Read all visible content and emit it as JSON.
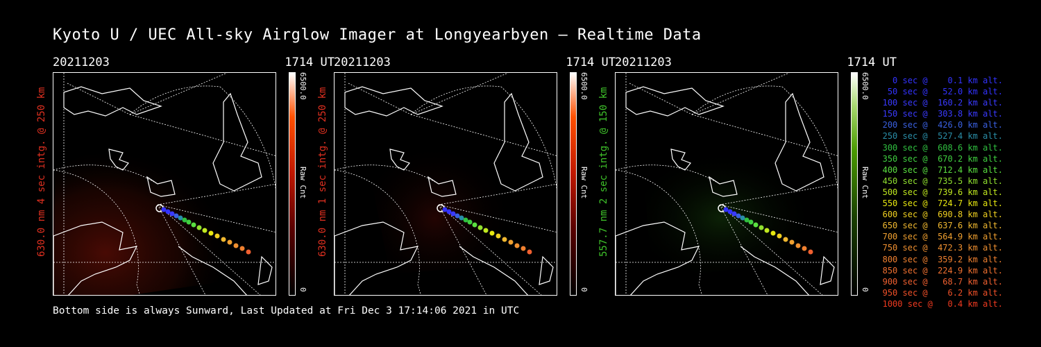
{
  "title": "Kyoto U / UEC All-sky Airglow Imager at Longyearbyen — Realtime Data",
  "footer": "Bottom side is always Sunward, Last Updated at Fri Dec  3 17:14:06 2021 in UTC",
  "panels": [
    {
      "date": "20211203",
      "time": "1714 UT",
      "ylabel": "630.0 nm 4 sec intg. @ 250 km",
      "label_color": "#e03020",
      "colorbar": {
        "max": "6500.0",
        "min": "0",
        "name": "Raw Cnt",
        "color": "#ff4a00"
      }
    },
    {
      "date": "20211203",
      "time": "1714 UT",
      "ylabel": "630.0 nm 1 sec intg. @ 250 km",
      "label_color": "#e03020",
      "colorbar": {
        "max": "6500.0",
        "min": "0",
        "name": "Raw Cnt",
        "color": "#ff4a00"
      }
    },
    {
      "date": "20211203",
      "time": "1714 UT",
      "ylabel": "557.7 nm 2 sec intg. @ 150 km",
      "label_color": "#3fc42a",
      "colorbar": {
        "max": "6500.0",
        "min": "0",
        "name": "Raw Cnt",
        "color": "#3a8a00"
      }
    }
  ],
  "legend": [
    {
      "text": "  0 sec @    0.1 km alt.",
      "color": "#3333ff"
    },
    {
      "text": " 50 sec @   52.0 km alt.",
      "color": "#3333ff"
    },
    {
      "text": "100 sec @  160.2 km alt.",
      "color": "#3a3aff"
    },
    {
      "text": "150 sec @  303.8 km alt.",
      "color": "#3a3aff"
    },
    {
      "text": "200 sec @  426.0 km alt.",
      "color": "#3a60e0"
    },
    {
      "text": "250 sec @  527.4 km alt.",
      "color": "#2a8ea8"
    },
    {
      "text": "300 sec @  608.6 km alt.",
      "color": "#30c040"
    },
    {
      "text": "350 sec @  670.2 km alt.",
      "color": "#40d040"
    },
    {
      "text": "400 sec @  712.4 km alt.",
      "color": "#5ae040"
    },
    {
      "text": "450 sec @  735.5 km alt.",
      "color": "#90e030"
    },
    {
      "text": "500 sec @  739.6 km alt.",
      "color": "#c0e820"
    },
    {
      "text": "550 sec @  724.7 km alt.",
      "color": "#e8e810"
    },
    {
      "text": "600 sec @  690.8 km alt.",
      "color": "#f0d020"
    },
    {
      "text": "650 sec @  637.6 km alt.",
      "color": "#f0b830"
    },
    {
      "text": "700 sec @  564.9 km alt.",
      "color": "#f0a030"
    },
    {
      "text": "750 sec @  472.3 km alt.",
      "color": "#f09030"
    },
    {
      "text": "800 sec @  359.2 km alt.",
      "color": "#f08030"
    },
    {
      "text": "850 sec @  224.9 km alt.",
      "color": "#f07030"
    },
    {
      "text": "900 sec @   68.7 km alt.",
      "color": "#f06030"
    },
    {
      "text": "950 sec @    6.2 km alt.",
      "color": "#f05028"
    },
    {
      "text": "1000 sec @   0.4 km alt.",
      "color": "#f03a20"
    }
  ]
}
